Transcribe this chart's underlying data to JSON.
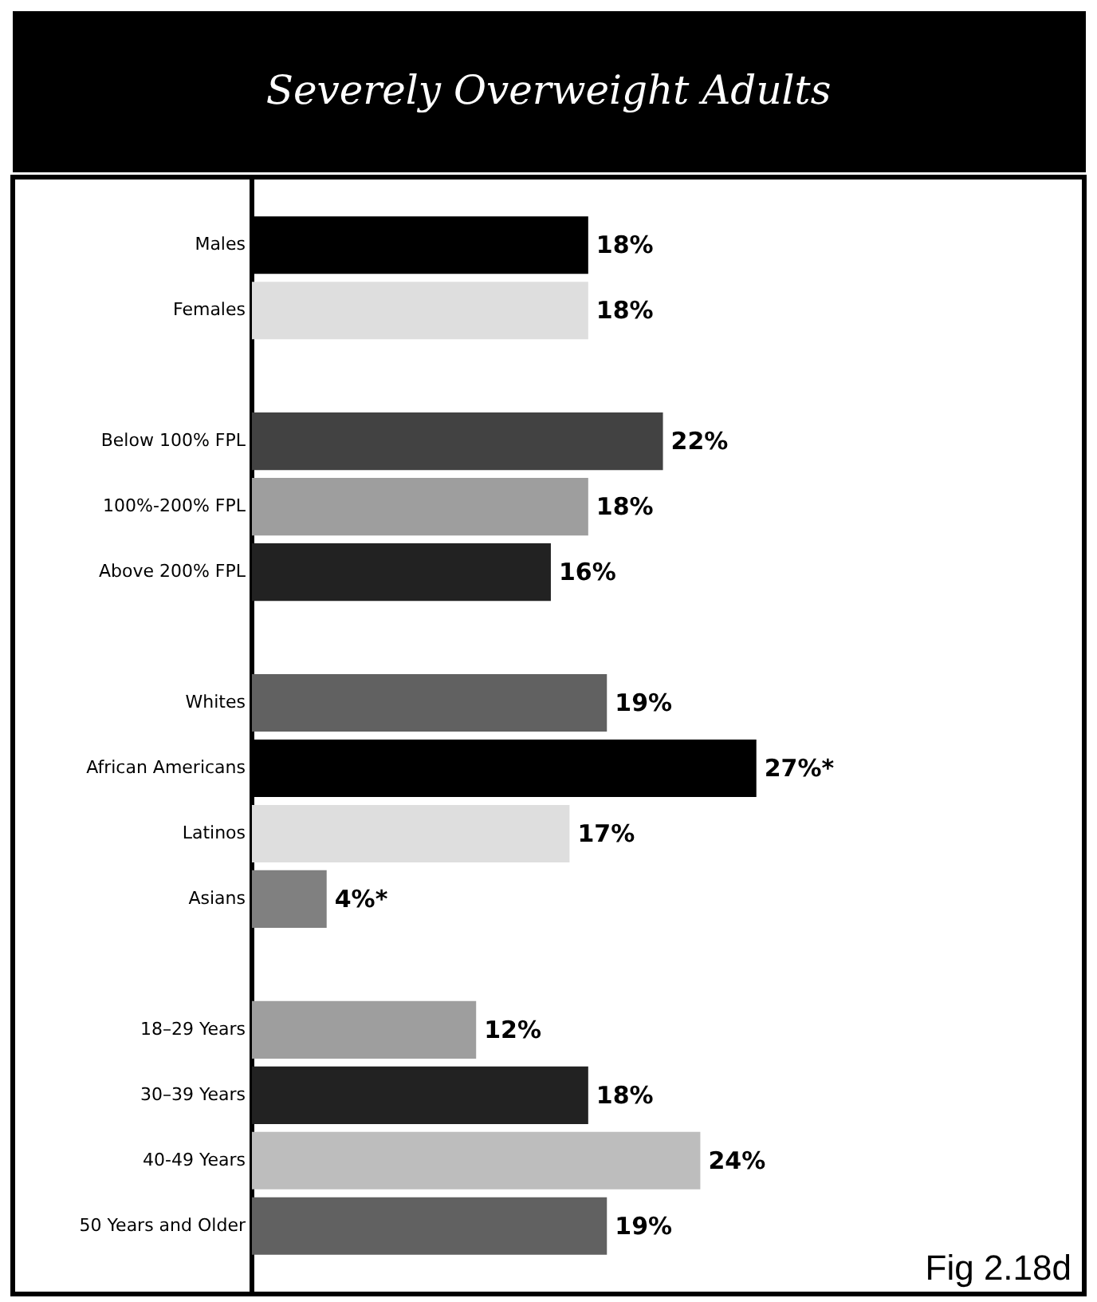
{
  "chart_data": {
    "type": "bar",
    "orientation": "horizontal",
    "title": "Severely Overweight Adults",
    "categories": [
      "Males",
      "Females",
      null,
      "Below 100% FPL",
      "100%-200% FPL",
      "Above 200% FPL",
      null,
      "Whites",
      "African Americans",
      "Latinos",
      "Asians",
      null,
      "18–29 Years",
      "30–39 Years",
      "40-49 Years",
      "50 Years and Older"
    ],
    "values": [
      18,
      18,
      null,
      22,
      18,
      16,
      null,
      19,
      27,
      17,
      4,
      null,
      12,
      18,
      24,
      19
    ],
    "colors": [
      "#000000",
      "#dedede",
      null,
      "#424242",
      "#9e9e9e",
      "#222222",
      null,
      "#616161",
      "#000000",
      "#dedede",
      "#808080",
      null,
      "#9e9e9e",
      "#222222",
      "#bdbdbd",
      "#616161"
    ],
    "value_labels": [
      "18%",
      "18%",
      null,
      "22%",
      "18%",
      "16%",
      null,
      "19%",
      "27%*",
      "17%",
      "4%*",
      null,
      "12%",
      "18%",
      "24%",
      "19%"
    ],
    "annotations": [
      "Fig 2.18d"
    ],
    "grid": false
  }
}
